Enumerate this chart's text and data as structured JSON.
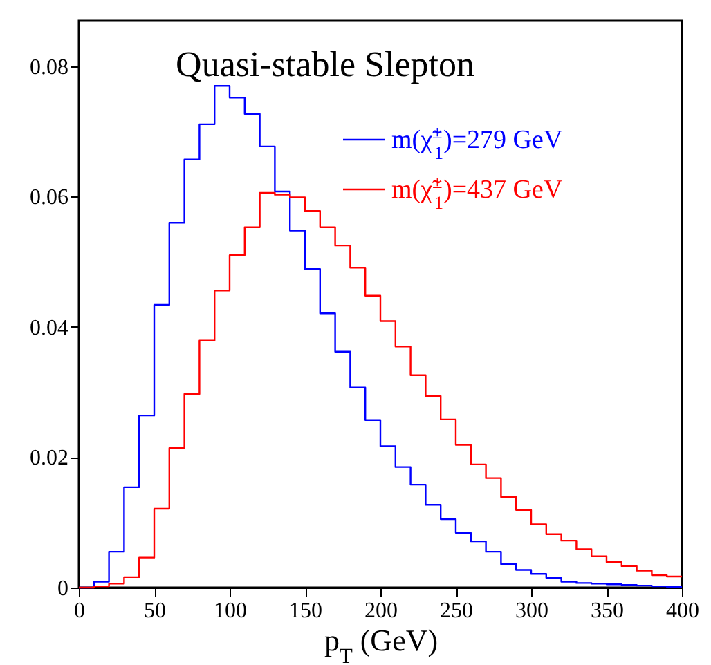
{
  "chart_data": {
    "type": "histogram",
    "title": "Quasi-stable Slepton",
    "xlabel": "p$_{T}$ (GeV)",
    "bins": [
      0,
      10,
      20,
      30,
      40,
      50,
      60,
      70,
      80,
      90,
      100,
      110,
      120,
      130,
      140,
      150,
      160,
      170,
      180,
      190,
      200,
      210,
      220,
      230,
      240,
      250,
      260,
      270,
      280,
      290,
      300,
      310,
      320,
      330,
      340,
      350,
      360,
      370,
      380,
      390,
      400
    ],
    "series": [
      {
        "name": "m(χ̃$^{±}$$_{1}$)=279 GeV",
        "color": "#0000ff",
        "values": [
          0,
          0.0009,
          0.0055,
          0.0154,
          0.0264,
          0.0434,
          0.056,
          0.0657,
          0.0711,
          0.077,
          0.0752,
          0.0727,
          0.0677,
          0.0608,
          0.0548,
          0.0489,
          0.0421,
          0.0362,
          0.0307,
          0.0257,
          0.0217,
          0.0185,
          0.0158,
          0.0127,
          0.0105,
          0.0084,
          0.0071,
          0.0055,
          0.0036,
          0.0027,
          0.0021,
          0.0015,
          0.0009,
          0.0007,
          0.0006,
          0.0005,
          0.0004,
          0.0003,
          0.0002,
          0.0001
        ]
      },
      {
        "name": "m(χ̃$^{±}$$_{1}$)=437 GeV",
        "color": "#ff0000",
        "values": [
          0,
          0.0002,
          0.0006,
          0.0016,
          0.0046,
          0.0121,
          0.0214,
          0.0297,
          0.0379,
          0.0456,
          0.051,
          0.0553,
          0.0606,
          0.0603,
          0.0599,
          0.0578,
          0.0553,
          0.0525,
          0.0491,
          0.0448,
          0.0409,
          0.037,
          0.0326,
          0.0294,
          0.0258,
          0.0219,
          0.0189,
          0.0168,
          0.0139,
          0.0119,
          0.0097,
          0.0082,
          0.0072,
          0.0059,
          0.0048,
          0.0039,
          0.0033,
          0.0026,
          0.0019,
          0.0017
        ]
      }
    ],
    "xlim": [
      0,
      400
    ],
    "xticks": [
      0,
      50,
      100,
      150,
      200,
      250,
      300,
      350,
      400
    ],
    "ylim": [
      0,
      0.087
    ],
    "yticks": [
      0,
      0.02,
      0.04,
      0.06,
      0.08
    ],
    "legend": "top right",
    "grid": false
  }
}
